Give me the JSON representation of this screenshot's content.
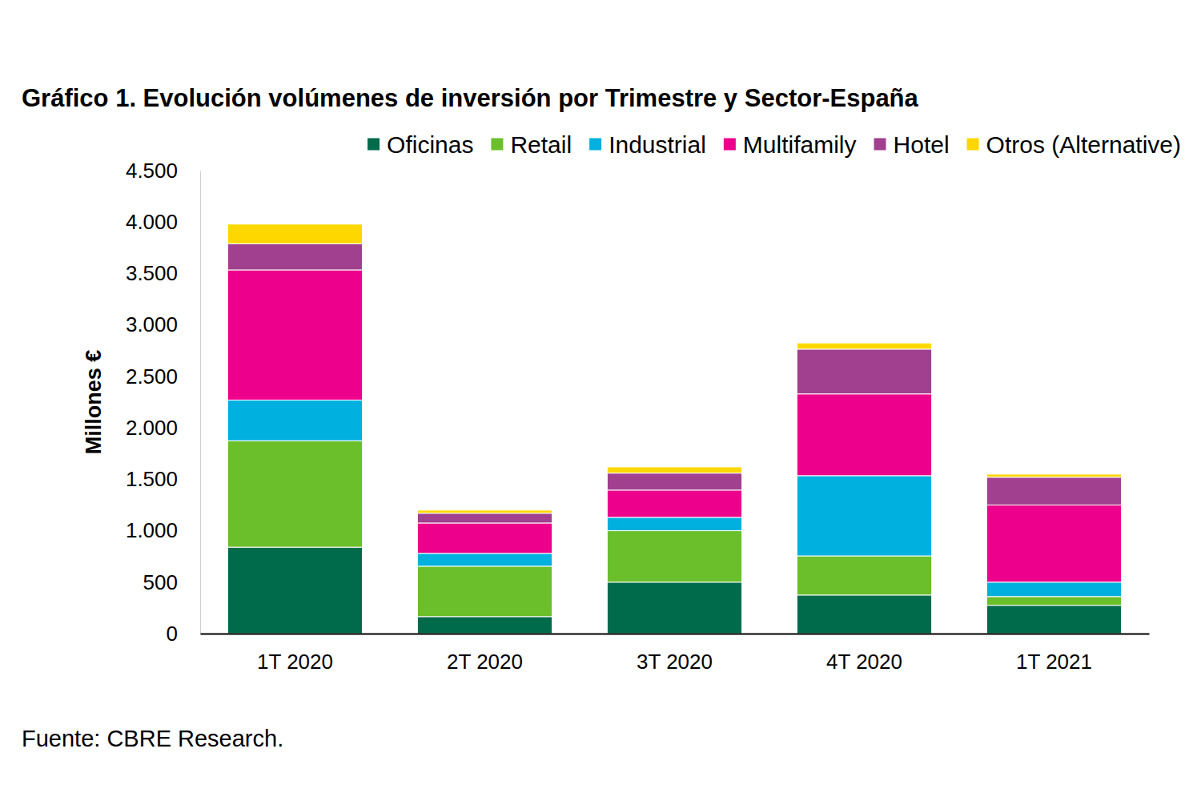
{
  "chart_data": {
    "type": "bar",
    "stacked": true,
    "title": "Gráfico 1. Evolución volúmenes de inversión por Trimestre y Sector-España",
    "y_label": "Millones €",
    "source": "Fuente: CBRE Research.",
    "categories": [
      "1T 2020",
      "2T 2020",
      "3T 2020",
      "4T 2020",
      "1T 2021"
    ],
    "series": [
      {
        "name": "Oficinas",
        "color": "#006b4a",
        "values": [
          840,
          165,
          500,
          375,
          275
        ]
      },
      {
        "name": "Retail",
        "color": "#6abf2a",
        "values": [
          1035,
          490,
          500,
          380,
          85
        ]
      },
      {
        "name": "Industrial",
        "color": "#00b0de",
        "values": [
          395,
          125,
          130,
          780,
          140
        ]
      },
      {
        "name": "Multifamily",
        "color": "#ec008c",
        "values": [
          1265,
          295,
          265,
          795,
          750
        ]
      },
      {
        "name": "Hotel",
        "color": "#a0408f",
        "values": [
          255,
          95,
          165,
          435,
          270
        ]
      },
      {
        "name": "Otros (Alternative)",
        "color": "#ffd700",
        "values": [
          190,
          30,
          60,
          60,
          30
        ]
      }
    ],
    "ylim": [
      0,
      4500
    ],
    "yticks": [
      0,
      500,
      {
        "value": 1000,
        "label": "1.000"
      },
      {
        "value": 1500,
        "label": "1.500"
      },
      {
        "value": 2000,
        "label": "2.000"
      },
      {
        "value": 2500,
        "label": "2.500"
      },
      {
        "value": 3000,
        "label": "3.000"
      },
      {
        "value": 3500,
        "label": "3.500"
      },
      {
        "value": 4000,
        "label": "4.000"
      },
      {
        "value": 4500,
        "label": "4.500"
      }
    ],
    "grid": false,
    "legend": "top"
  }
}
